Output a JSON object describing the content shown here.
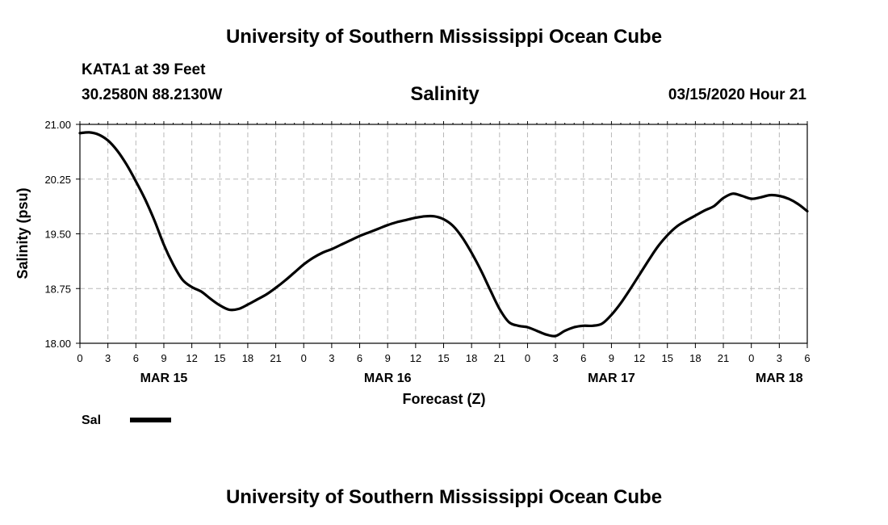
{
  "header": {
    "title": "University of Southern Mississippi Ocean Cube",
    "station": "KATA1 at 39 Feet",
    "coords": "30.2580N 88.2130W",
    "datetime": "03/15/2020 Hour 21"
  },
  "footer": {
    "title": "University of Southern Mississippi Ocean Cube"
  },
  "legend": {
    "label": "Sal",
    "color": "#000000"
  },
  "chart_data": {
    "type": "line",
    "title": "Salinity",
    "xlabel": "Forecast (Z)",
    "ylabel": "Salinity (psu)",
    "ylim": [
      18.0,
      21.0
    ],
    "xlim": [
      0,
      78
    ],
    "x_unit": "hours from MAR 15 00Z",
    "grid": true,
    "y_ticks": [
      18.0,
      18.75,
      19.5,
      20.25,
      21.0
    ],
    "y_tick_labels": [
      "18.00",
      "18.75",
      "19.50",
      "20.25",
      "21.00"
    ],
    "x_tick_labels": [
      "0",
      "3",
      "6",
      "9",
      "12",
      "15",
      "18",
      "21",
      "0",
      "3",
      "6",
      "9",
      "12",
      "15",
      "18",
      "21",
      "0",
      "3",
      "6",
      "9",
      "12",
      "15",
      "18",
      "21",
      "0",
      "3",
      "6"
    ],
    "date_labels": [
      {
        "label": "MAR 15",
        "hour": 9
      },
      {
        "label": "MAR 16",
        "hour": 33
      },
      {
        "label": "MAR 17",
        "hour": 57
      },
      {
        "label": "MAR 18",
        "hour": 75
      }
    ],
    "series": [
      {
        "name": "Sal",
        "x": [
          0,
          1,
          2,
          3,
          4,
          5,
          6,
          7,
          8,
          9,
          10,
          11,
          12,
          13,
          14,
          15,
          16,
          17,
          18,
          19,
          20,
          21,
          22,
          23,
          24,
          25,
          26,
          27,
          28,
          29,
          30,
          31,
          32,
          33,
          34,
          35,
          36,
          37,
          38,
          39,
          40,
          41,
          42,
          43,
          44,
          45,
          46,
          47,
          48,
          49,
          50,
          51,
          52,
          53,
          54,
          55,
          56,
          57,
          58,
          59,
          60,
          61,
          62,
          63,
          64,
          65,
          66,
          67,
          68,
          69,
          70,
          71,
          72,
          73,
          74,
          75,
          76,
          77,
          78
        ],
        "values": [
          20.88,
          20.89,
          20.86,
          20.78,
          20.64,
          20.45,
          20.22,
          19.97,
          19.68,
          19.35,
          19.08,
          18.87,
          18.77,
          18.71,
          18.61,
          18.52,
          18.46,
          18.47,
          18.53,
          18.6,
          18.67,
          18.76,
          18.86,
          18.97,
          19.08,
          19.17,
          19.24,
          19.29,
          19.35,
          19.41,
          19.47,
          19.52,
          19.57,
          19.62,
          19.66,
          19.69,
          19.72,
          19.74,
          19.74,
          19.7,
          19.61,
          19.45,
          19.24,
          19.0,
          18.73,
          18.47,
          18.29,
          18.24,
          18.22,
          18.17,
          18.12,
          18.1,
          18.17,
          18.22,
          18.24,
          18.24,
          18.27,
          18.39,
          18.55,
          18.74,
          18.94,
          19.14,
          19.33,
          19.48,
          19.6,
          19.68,
          19.75,
          19.82,
          19.88,
          19.99,
          20.05,
          20.02,
          19.98,
          20.0,
          20.03,
          20.02,
          19.98,
          19.91,
          19.81
        ]
      }
    ]
  }
}
